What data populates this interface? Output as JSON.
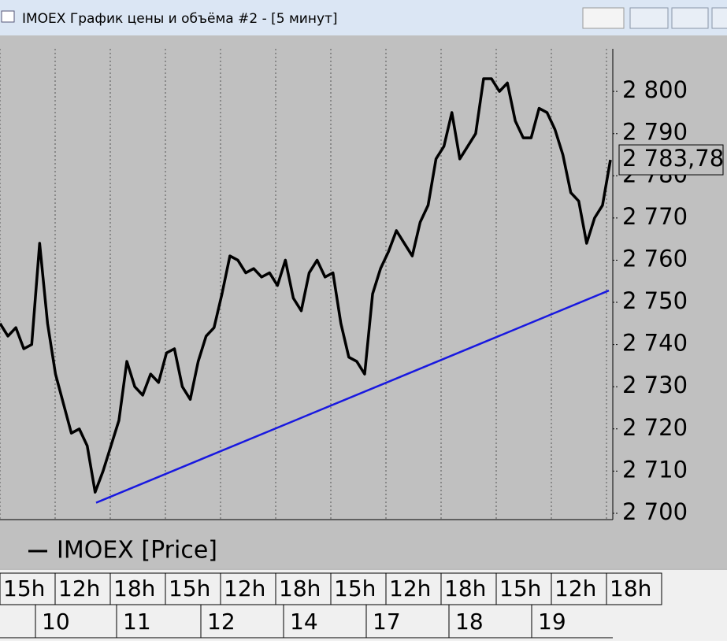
{
  "window": {
    "title": "IMOEX График цены и объёма #2 - [5 минут]"
  },
  "chart_data": {
    "type": "line",
    "series": [
      {
        "name": "IMOEX [Price]",
        "color": "#000000",
        "values": [
          2745,
          2742,
          2744,
          2739,
          2740,
          2764,
          2745,
          2733,
          2726,
          2719,
          2720,
          2716,
          2705,
          2710,
          2716,
          2722,
          2736,
          2730,
          2728,
          2733,
          2731,
          2738,
          2739,
          2730,
          2727,
          2736,
          2742,
          2744,
          2752,
          2761,
          2760,
          2757,
          2758,
          2756,
          2757,
          2754,
          2760,
          2751,
          2748,
          2757,
          2760,
          2756,
          2757,
          2745,
          2737,
          2736,
          2733,
          2752,
          2758,
          2762,
          2767,
          2764,
          2761,
          2769,
          2773,
          2784,
          2787,
          2795,
          2784,
          2787,
          2790,
          2803,
          2803,
          2800,
          2802,
          2793,
          2789,
          2789,
          2796,
          2795,
          2791,
          2785,
          2776,
          2774,
          2764,
          2770,
          2773,
          2783.78
        ]
      }
    ],
    "trendline": {
      "color": "#1818e0",
      "values": [
        2702.5,
        2752.8
      ]
    },
    "last_price": {
      "value": 2783.78,
      "label": "2 783,78"
    },
    "ylim": [
      2698.5,
      2810.1
    ],
    "yticks": [
      {
        "value": 2700,
        "label": "2 700"
      },
      {
        "value": 2710,
        "label": "2 710"
      },
      {
        "value": 2720,
        "label": "2 720"
      },
      {
        "value": 2730,
        "label": "2 730"
      },
      {
        "value": 2740,
        "label": "2 740"
      },
      {
        "value": 2750,
        "label": "2 750"
      },
      {
        "value": 2760,
        "label": "2 760"
      },
      {
        "value": 2770,
        "label": "2 770"
      },
      {
        "value": 2780,
        "label": "2 780"
      },
      {
        "value": 2790,
        "label": "2 790"
      },
      {
        "value": 2800,
        "label": "2 800"
      }
    ]
  },
  "time_axis": {
    "hours": [
      "15h",
      "12h",
      "18h",
      "15h",
      "12h",
      "18h",
      "15h",
      "12h",
      "18h",
      "15h",
      "12h",
      "18h"
    ],
    "days": [
      "10",
      "11",
      "12",
      "14",
      "17",
      "18",
      "19"
    ]
  }
}
